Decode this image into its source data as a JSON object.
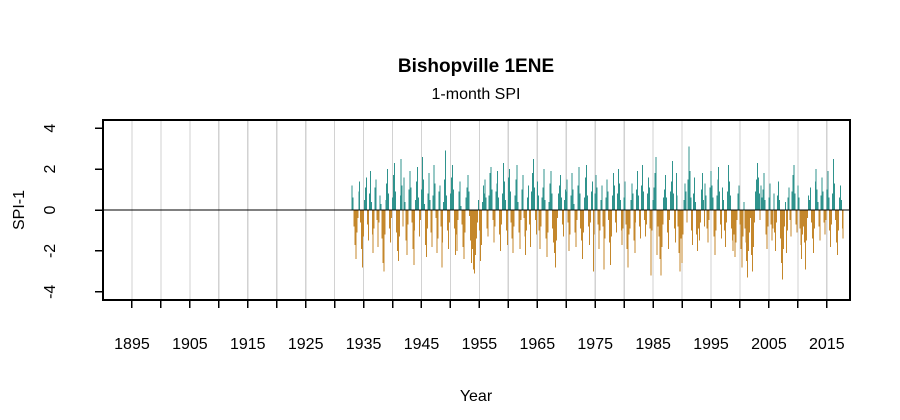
{
  "header": {
    "title": "Bishopville 1ENE",
    "subtitle": "1-month SPI"
  },
  "chart_data": {
    "type": "bar",
    "title": "Bishopville 1ENE",
    "subtitle": "1-month SPI",
    "xlabel": "Year",
    "ylabel": "SPI-1",
    "xlim": [
      1890,
      2019
    ],
    "ylim": [
      -4.4,
      4.4
    ],
    "grid": "vertical-gridlines-every-5-years",
    "legend": "none",
    "zero_line": true,
    "x_ticks": [
      1895,
      1900,
      1905,
      1910,
      1915,
      1920,
      1925,
      1930,
      1935,
      1940,
      1945,
      1950,
      1955,
      1960,
      1965,
      1970,
      1975,
      1980,
      1985,
      1990,
      1995,
      2000,
      2005,
      2010,
      2015
    ],
    "x_tick_labels": [
      1895,
      1905,
      1915,
      1925,
      1935,
      1945,
      1955,
      1965,
      1975,
      1985,
      1995,
      2005,
      2015
    ],
    "y_ticks": [
      -4,
      -2,
      0,
      2,
      4
    ],
    "colors": {
      "positive": "#2f938d",
      "negative": "#c4872b",
      "grid": "#d2d2d2",
      "axis": "#000000",
      "background": "#ffffff"
    },
    "series_start_year": 1933.0,
    "points_per_year": 6,
    "values": [
      1.2,
      0.6,
      -0.8,
      -1.7,
      -2.4,
      -1.1,
      -0.4,
      0.9,
      1.4,
      -0.6,
      -1.9,
      -2.8,
      -1.3,
      0.5,
      1.1,
      1.6,
      -0.7,
      -1.5,
      0.8,
      1.9,
      0.4,
      -1.2,
      -2.1,
      -0.9,
      1.1,
      1.5,
      -0.5,
      -1.8,
      -0.6,
      0.7,
      0.3,
      -1.4,
      -2.6,
      -3.0,
      -1.2,
      0.5,
      1.3,
      2.0,
      0.8,
      -0.9,
      -1.6,
      -0.4,
      0.6,
      1.7,
      2.3,
      0.9,
      -1.1,
      -2.0,
      -2.5,
      -1.3,
      0.7,
      2.5,
      1.2,
      -0.8,
      1.6,
      0.4,
      -1.5,
      -2.2,
      -0.7,
      1.0,
      1.9,
      1.1,
      -0.6,
      -1.9,
      -2.7,
      -1.0,
      0.5,
      1.4,
      2.1,
      0.6,
      -1.3,
      -0.5,
      1.0,
      2.6,
      1.5,
      0.3,
      -1.7,
      -2.3,
      -0.9,
      0.8,
      1.8,
      0.5,
      -1.1,
      -1.8,
      0.7,
      2.2,
      1.3,
      -0.4,
      -2.1,
      -1.4,
      0.9,
      1.2,
      -0.8,
      -2.8,
      -1.6,
      0.4,
      1.5,
      2.9,
      0.7,
      -1.0,
      -1.9,
      -0.6,
      0.8,
      1.6,
      2.2,
      1.0,
      -0.9,
      -2.2,
      -1.2,
      -2.0,
      -0.5,
      0.9,
      1.4,
      0.2,
      -0.7,
      -1.8,
      -2.4,
      -1.1,
      0.6,
      1.1,
      1.7,
      0.9,
      -0.3,
      -1.5,
      -2.6,
      -1.9,
      -2.9,
      -3.1,
      -2.2,
      -1.4,
      -0.6,
      0.5,
      -1.0,
      -2.5,
      -1.7,
      0.4,
      1.2,
      0.8,
      1.5,
      0.6,
      -0.9,
      -1.3,
      0.7,
      1.8,
      2.1,
      1.0,
      -0.5,
      -1.6,
      -0.8,
      0.9,
      1.3,
      1.9,
      0.6,
      -1.2,
      -2.0,
      -0.7,
      0.8,
      2.3,
      1.4,
      0.5,
      -1.0,
      -1.7,
      1.6,
      2.0,
      0.9,
      -0.6,
      -1.4,
      -2.1,
      -0.8,
      0.7,
      1.5,
      2.2,
      0.4,
      -1.1,
      -1.9,
      -0.5,
      1.0,
      1.7,
      -0.4,
      -1.3,
      -2.2,
      -1.0,
      0.6,
      1.2,
      -0.7,
      -1.8,
      0.9,
      1.8,
      2.5,
      1.1,
      -0.5,
      -1.2,
      1.4,
      0.7,
      -1.0,
      -1.9,
      -0.8,
      0.6,
      1.1,
      2.0,
      0.5,
      -1.4,
      -2.3,
      -1.1,
      0.4,
      1.3,
      1.9,
      0.8,
      -0.9,
      -1.6,
      -2.1,
      -2.8,
      -1.5,
      -0.4,
      0.8,
      1.2,
      1.7,
      0.6,
      -0.7,
      -1.3,
      0.5,
      1.0,
      0.9,
      1.5,
      -0.6,
      -2.0,
      -1.2,
      0.7,
      1.8,
      1.0,
      0.3,
      -1.1,
      -1.8,
      -0.5,
      1.2,
      2.1,
      0.8,
      -0.9,
      -1.5,
      -2.4,
      -1.1,
      0.6,
      1.6,
      2.2,
      0.7,
      -0.8,
      -1.7,
      -0.6,
      0.9,
      1.4,
      -3.0,
      -1.2,
      0.8,
      1.7,
      1.1,
      -0.7,
      -1.9,
      -1.0,
      0.5,
      1.2,
      -0.8,
      -2.9,
      -1.4,
      0.6,
      1.5,
      0.9,
      -0.5,
      -1.6,
      -2.7,
      -1.3,
      0.7,
      1.8,
      1.2,
      -0.6,
      -1.1,
      0.8,
      2.0,
      1.3,
      0.5,
      -1.0,
      -1.7,
      -0.9,
      0.6,
      1.4,
      -0.7,
      -1.9,
      -2.8,
      -1.2,
      -0.9,
      0.5,
      1.3,
      0.8,
      -1.5,
      -2.1,
      -0.6,
      1.0,
      1.9,
      0.7,
      -0.8,
      -1.4,
      1.2,
      2.2,
      0.9,
      -0.5,
      -1.3,
      -0.7,
      0.8,
      1.6,
      1.1,
      -0.9,
      -3.2,
      -1.0,
      0.5,
      1.1,
      1.8,
      2.6,
      -2.2,
      -0.8,
      -1.3,
      -2.4,
      -3.2,
      -1.8,
      -0.7,
      0.6,
      1.0,
      1.7,
      0.6,
      -1.1,
      -1.9,
      -0.5,
      0.9,
      1.4,
      2.4,
      0.8,
      -0.9,
      -1.6,
      1.8,
      0.7,
      -0.8,
      -2.1,
      -3.0,
      -1.4,
      -2.6,
      -1.2,
      0.5,
      1.3,
      0.9,
      -0.6,
      1.5,
      3.1,
      1.9,
      0.6,
      -1.0,
      -1.7,
      0.8,
      1.6,
      0.4,
      -1.2,
      -2.0,
      -0.9,
      -1.5,
      -0.6,
      1.0,
      1.8,
      0.5,
      -0.8,
      1.3,
      0.7,
      -0.9,
      -1.6,
      -0.5,
      1.1,
      1.9,
      1.2,
      0.6,
      -1.3,
      -2.2,
      -1.0,
      0.7,
      1.5,
      2.1,
      0.9,
      -0.7,
      -1.4,
      1.1,
      0.5,
      -1.0,
      -1.8,
      -0.6,
      0.9,
      2.2,
      1.4,
      0.7,
      -0.9,
      -1.5,
      -2.0,
      -1.2,
      -2.3,
      -1.6,
      -0.5,
      0.8,
      1.2,
      -0.7,
      -1.9,
      -2.8,
      -1.3,
      0.4,
      -0.9,
      -1.6,
      -2.5,
      -3.3,
      -2.0,
      -1.1,
      -0.4,
      -2.2,
      -3.0,
      -1.8,
      -0.6,
      0.9,
      1.5,
      2.3,
      1.6,
      0.8,
      -0.5,
      1.2,
      0.6,
      1.0,
      1.8,
      0.5,
      -1.2,
      -1.9,
      -0.8,
      0.6,
      1.3,
      -0.7,
      -1.5,
      -0.9,
      0.8,
      -1.1,
      -2.0,
      -0.6,
      0.7,
      1.4,
      0.5,
      -1.4,
      -2.6,
      -3.4,
      -1.9,
      -0.8,
      0.4,
      -2.1,
      -1.0,
      0.6,
      1.1,
      -0.5,
      -1.3,
      0.9,
      1.7,
      2.2,
      0.8,
      -0.7,
      -1.1,
      1.2,
      0.6,
      -0.9,
      -1.7,
      -2.4,
      -1.2,
      -0.8,
      -1.6,
      -2.9,
      -1.5,
      -0.4,
      0.7,
      0.5,
      1.1,
      -0.6,
      -1.4,
      -2.1,
      -0.9,
      1.4,
      2.0,
      1.0,
      0.4,
      -0.8,
      -1.5,
      0.7,
      1.6,
      0.9,
      -0.6,
      -1.2,
      -0.5,
      1.0,
      1.9,
      0.6,
      -1.0,
      -1.8,
      -0.7,
      0.8,
      2.5,
      1.3,
      -0.5,
      -1.6,
      -2.2,
      -1.0,
      0.6,
      1.2,
      0.5,
      -0.9,
      -1.4
    ]
  }
}
